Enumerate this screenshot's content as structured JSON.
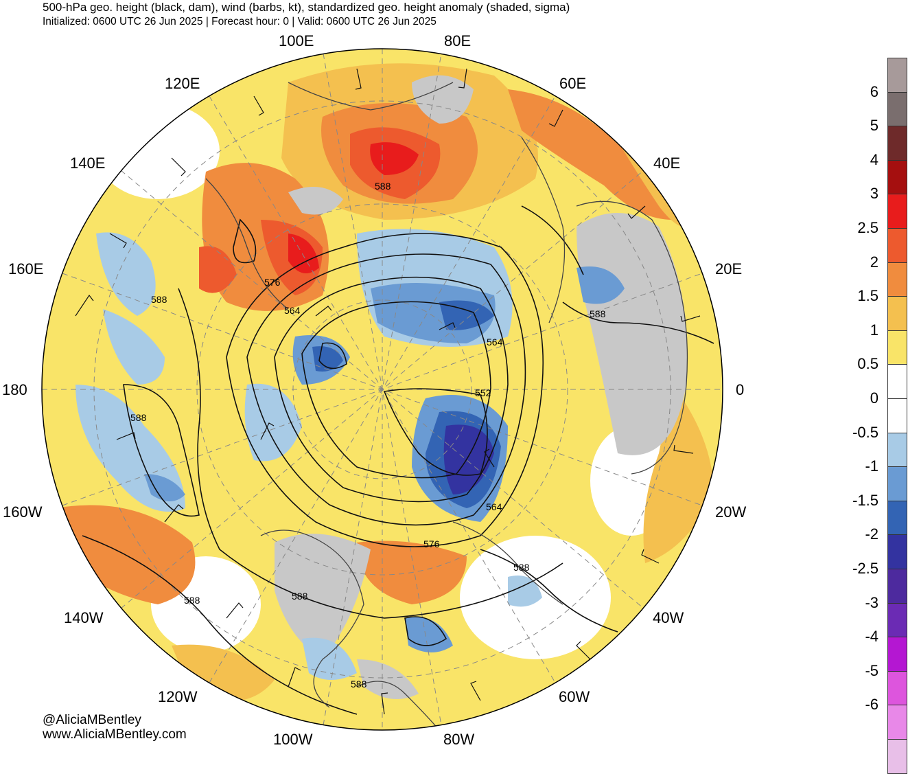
{
  "header": {
    "title": "500-hPa geo. height (black, dam), wind (barbs, kt), standardized geo. height anomaly (shaded, sigma)",
    "subtitle": "Initialized: 0600 UTC 26 Jun 2025 | Forecast hour: 0 | Valid: 0600 UTC 26 Jun 2025"
  },
  "map": {
    "projection": "north polar stereographic",
    "longitude_labels": [
      "100E",
      "80E",
      "120E",
      "60E",
      "140E",
      "40E",
      "160E",
      "20E",
      "180",
      "0",
      "160W",
      "20W",
      "140W",
      "40W",
      "120W",
      "60W",
      "100W",
      "80W"
    ],
    "contour_labels": [
      "588",
      "576",
      "564",
      "564",
      "552",
      "564",
      "576",
      "588",
      "588",
      "588",
      "588",
      "588",
      "588",
      "588"
    ],
    "colors": {
      "land": "#c8c8c8",
      "anom_pos_1": "#f9e468",
      "anom_pos_2": "#f4c04f",
      "anom_pos_3": "#f08c3e",
      "anom_pos_4": "#ed5a2e",
      "anom_pos_5": "#e81c1c",
      "anom_neg_1": "#a8cbe6",
      "anom_neg_2": "#6a9bd3",
      "anom_neg_3": "#3364b4",
      "anom_neg_4": "#3333a0"
    }
  },
  "colorbar": {
    "labels": [
      "6",
      "5",
      "4",
      "3",
      "2.5",
      "2",
      "1.5",
      "1",
      "0.5",
      "0",
      "-0.5",
      "-1",
      "-1.5",
      "-2",
      "-2.5",
      "-3",
      "-4",
      "-5",
      "-6"
    ],
    "colors": [
      "#a79a9a",
      "#7a6e6e",
      "#6e2a2a",
      "#a50f0f",
      "#e81c1c",
      "#ed5a2e",
      "#f08c3e",
      "#f4c04f",
      "#f9e468",
      "#ffffff",
      "#ffffff",
      "#a8cbe6",
      "#6a9bd3",
      "#3364b4",
      "#3333a0",
      "#4d2a9e",
      "#6b2bb4",
      "#b417d2",
      "#dd55dd",
      "#e888e8",
      "#e8bfe8"
    ]
  },
  "credits": {
    "handle": "@AliciaMBentley",
    "website": "www.AliciaMBentley.com"
  }
}
